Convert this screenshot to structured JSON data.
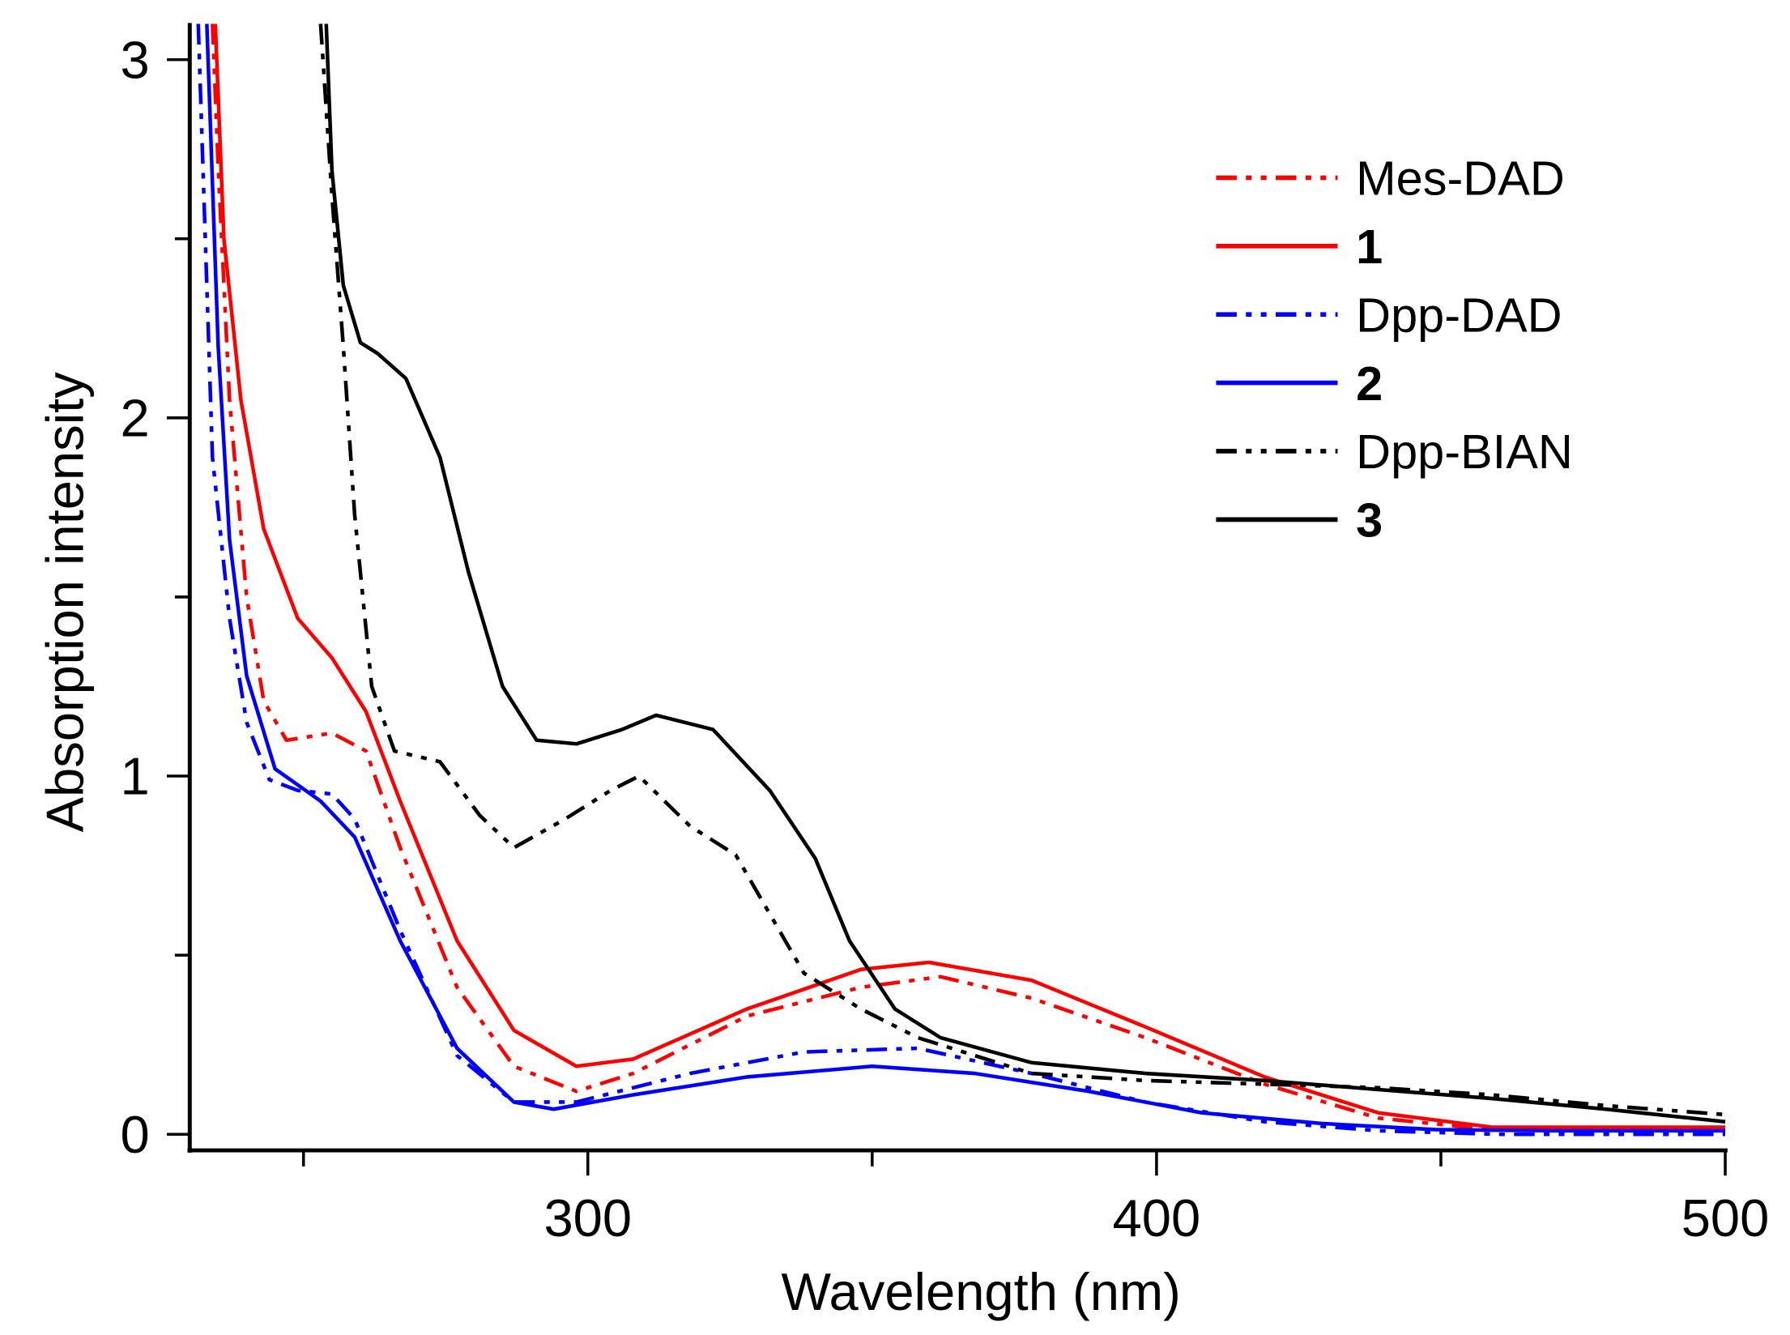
{
  "chart_data": {
    "type": "line",
    "title": "",
    "xlabel": "Wavelength (nm)",
    "ylabel": "Absorption intensity",
    "xlim": [
      230,
      500
    ],
    "ylim": [
      0,
      3.1
    ],
    "xticks": [
      300,
      400,
      500
    ],
    "xminor": [
      250,
      350,
      450
    ],
    "yticks": [
      0,
      1,
      2,
      3
    ],
    "yminor": [
      0.5,
      1.5,
      2.5
    ],
    "grid": false,
    "legend_position": "top-right",
    "series": [
      {
        "name": "Mes-DAD",
        "bold": false,
        "color": "#ff0000",
        "style": "dash-dot-dot",
        "x": [
          234,
          235,
          237,
          240,
          243,
          247,
          255,
          261,
          267,
          277,
          287,
          298,
          308,
          328,
          348,
          362,
          378,
          398,
          419,
          439,
          459,
          480,
          500
        ],
        "y": [
          3.1,
          2.7,
          2.05,
          1.5,
          1.21,
          1.1,
          1.12,
          1.07,
          0.8,
          0.41,
          0.19,
          0.12,
          0.17,
          0.33,
          0.41,
          0.44,
          0.38,
          0.27,
          0.14,
          0.045,
          0.013,
          0.01,
          0.01
        ]
      },
      {
        "name": "1",
        "bold": true,
        "color": "#ff0000",
        "style": "solid",
        "x": [
          234.5,
          236,
          239,
          243,
          249,
          255,
          261,
          267,
          277,
          287,
          298,
          308,
          328,
          348,
          360,
          378,
          398,
          419,
          439,
          459,
          480,
          500
        ],
        "y": [
          3.1,
          2.5,
          2.05,
          1.69,
          1.44,
          1.33,
          1.18,
          0.93,
          0.54,
          0.29,
          0.19,
          0.21,
          0.35,
          0.46,
          0.48,
          0.43,
          0.3,
          0.16,
          0.06,
          0.02,
          0.02,
          0.02
        ]
      },
      {
        "name": "Dpp-DAD",
        "bold": false,
        "color": "#0000ff",
        "style": "dash-dot-dot",
        "x": [
          231.5,
          234,
          237,
          240,
          244,
          249,
          255,
          259,
          267,
          277,
          287,
          298,
          318,
          338,
          358,
          378,
          398,
          419,
          439,
          460,
          500
        ],
        "y": [
          3.1,
          1.89,
          1.44,
          1.15,
          0.99,
          0.96,
          0.95,
          0.88,
          0.57,
          0.22,
          0.09,
          0.09,
          0.17,
          0.23,
          0.24,
          0.17,
          0.09,
          0.035,
          0.01,
          0.0,
          0.0
        ]
      },
      {
        "name": "2",
        "bold": true,
        "color": "#0000ff",
        "style": "solid",
        "x": [
          233,
          235,
          237,
          240,
          245,
          253,
          259,
          267,
          277,
          287,
          294,
          308,
          328,
          350,
          368,
          388,
          408,
          429,
          449,
          470,
          500
        ],
        "y": [
          3.1,
          2.2,
          1.66,
          1.28,
          1.02,
          0.93,
          0.83,
          0.54,
          0.24,
          0.09,
          0.07,
          0.11,
          0.16,
          0.19,
          0.17,
          0.12,
          0.06,
          0.03,
          0.013,
          0.01,
          0.01
        ]
      },
      {
        "name": "Dpp-BIAN",
        "bold": false,
        "color": "#000000",
        "style": "dash-dot-dot",
        "x": [
          253,
          255,
          257,
          259,
          262,
          266,
          274,
          281,
          287,
          296,
          304,
          309,
          318,
          326,
          338,
          348,
          358,
          378,
          398,
          419,
          439,
          459,
          479,
          500
        ],
        "y": [
          3.1,
          2.62,
          2.2,
          1.73,
          1.25,
          1.07,
          1.04,
          0.89,
          0.8,
          0.88,
          0.96,
          1.0,
          0.86,
          0.78,
          0.45,
          0.35,
          0.27,
          0.17,
          0.15,
          0.14,
          0.13,
          0.11,
          0.08,
          0.055
        ]
      },
      {
        "name": "3",
        "bold": true,
        "color": "#000000",
        "style": "solid",
        "x": [
          254,
          255,
          257,
          260,
          263,
          268,
          274,
          279,
          285,
          291,
          298,
          306,
          312,
          322,
          332,
          340,
          346,
          354,
          362,
          378,
          398,
          419,
          439,
          459,
          479,
          500
        ],
        "y": [
          3.1,
          2.69,
          2.37,
          2.21,
          2.18,
          2.11,
          1.89,
          1.57,
          1.25,
          1.1,
          1.09,
          1.13,
          1.17,
          1.13,
          0.96,
          0.77,
          0.54,
          0.35,
          0.27,
          0.2,
          0.17,
          0.15,
          0.125,
          0.1,
          0.07,
          0.035
        ]
      }
    ]
  }
}
